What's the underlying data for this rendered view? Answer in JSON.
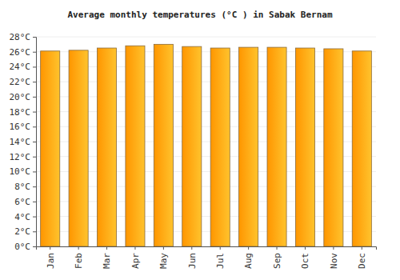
{
  "chart_data": {
    "type": "bar",
    "title": "Average monthly temperatures (°C ) in Sabak Bernam",
    "categories": [
      "Jan",
      "Feb",
      "Mar",
      "Apr",
      "May",
      "Jun",
      "Jul",
      "Aug",
      "Sep",
      "Oct",
      "Nov",
      "Dec"
    ],
    "values": [
      26.1,
      26.2,
      26.5,
      26.8,
      27.0,
      26.7,
      26.5,
      26.6,
      26.6,
      26.5,
      26.4,
      26.1
    ],
    "color": "#ffa500",
    "ylim": [
      0,
      28
    ],
    "yticks": [
      {
        "value": 0,
        "label": "0°C"
      },
      {
        "value": 2,
        "label": "2°C"
      },
      {
        "value": 4,
        "label": "4°C"
      },
      {
        "value": 6,
        "label": "6°C"
      },
      {
        "value": 8,
        "label": "8°C"
      },
      {
        "value": 10,
        "label": "10°C"
      },
      {
        "value": 12,
        "label": "12°C"
      },
      {
        "value": 14,
        "label": "14°C"
      },
      {
        "value": 16,
        "label": "16°C"
      },
      {
        "value": 18,
        "label": "18°C"
      },
      {
        "value": 20,
        "label": "20°C"
      },
      {
        "value": 22,
        "label": "22°C"
      },
      {
        "value": 24,
        "label": "24°C"
      },
      {
        "value": 26,
        "label": "26°C"
      },
      {
        "value": 28,
        "label": "28°C"
      }
    ],
    "grid": true
  }
}
